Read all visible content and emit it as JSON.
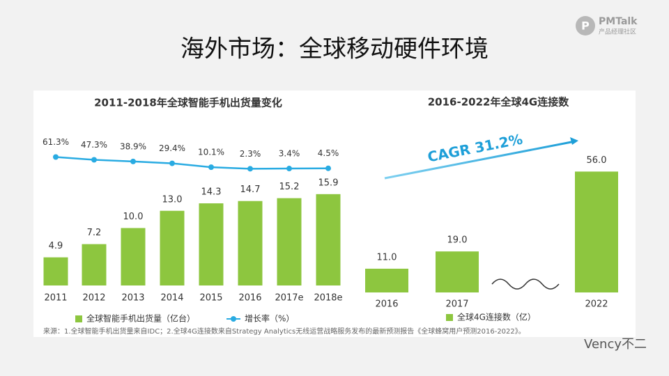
{
  "header": {
    "title": "海外市场：全球移动硬件环境",
    "logo": "PMTalk",
    "logo_sub": "产品经理社区"
  },
  "chart_data": [
    {
      "type": "bar",
      "title": "2011-2018年全球智能手机出货量变化",
      "categories": [
        "2011",
        "2012",
        "2013",
        "2014",
        "2015",
        "2016",
        "2017e",
        "2018e"
      ],
      "ylim": [
        0,
        20
      ],
      "y2lim": [
        0,
        70
      ],
      "series": [
        {
          "name": "全球智能手机出货量（亿台）",
          "color": "#8dc63f",
          "type": "bar",
          "values": [
            4.9,
            7.2,
            10.0,
            13.0,
            14.3,
            14.7,
            15.2,
            15.9
          ],
          "value_labels": [
            "4.9",
            "7.2",
            "10.0",
            "13.0",
            "14.3",
            "14.7",
            "15.2",
            "15.9"
          ]
        },
        {
          "name": "增长率（%）",
          "color": "#29abe2",
          "type": "line",
          "axis": "y2",
          "values": [
            61.3,
            47.3,
            38.9,
            29.4,
            10.1,
            2.3,
            3.4,
            4.5
          ],
          "value_labels": [
            "61.3%",
            "47.3%",
            "38.9%",
            "29.4%",
            "10.1%",
            "2.3%",
            "3.4%",
            "4.5%"
          ]
        }
      ]
    },
    {
      "type": "bar",
      "title": "2016-2022年全球4G连接数",
      "categories": [
        "2016",
        "2017",
        "2022"
      ],
      "ylim": [
        0,
        60
      ],
      "series": [
        {
          "name": "全球4G连接数（亿）",
          "color": "#8dc63f",
          "values": [
            11.0,
            19.0,
            56.0
          ],
          "value_labels": [
            "11.0",
            "19.0",
            "56.0"
          ]
        }
      ],
      "annotation": "CAGR 31.2%"
    }
  ],
  "source": "来源：1.全球智能手机出货量来自IDC；2.全球4G连接数来自Strategy Analytics无线运营战略服务发布的最新预测报告《全球蜂窝用户预测2016-2022》。",
  "watermark": "Vency不二"
}
